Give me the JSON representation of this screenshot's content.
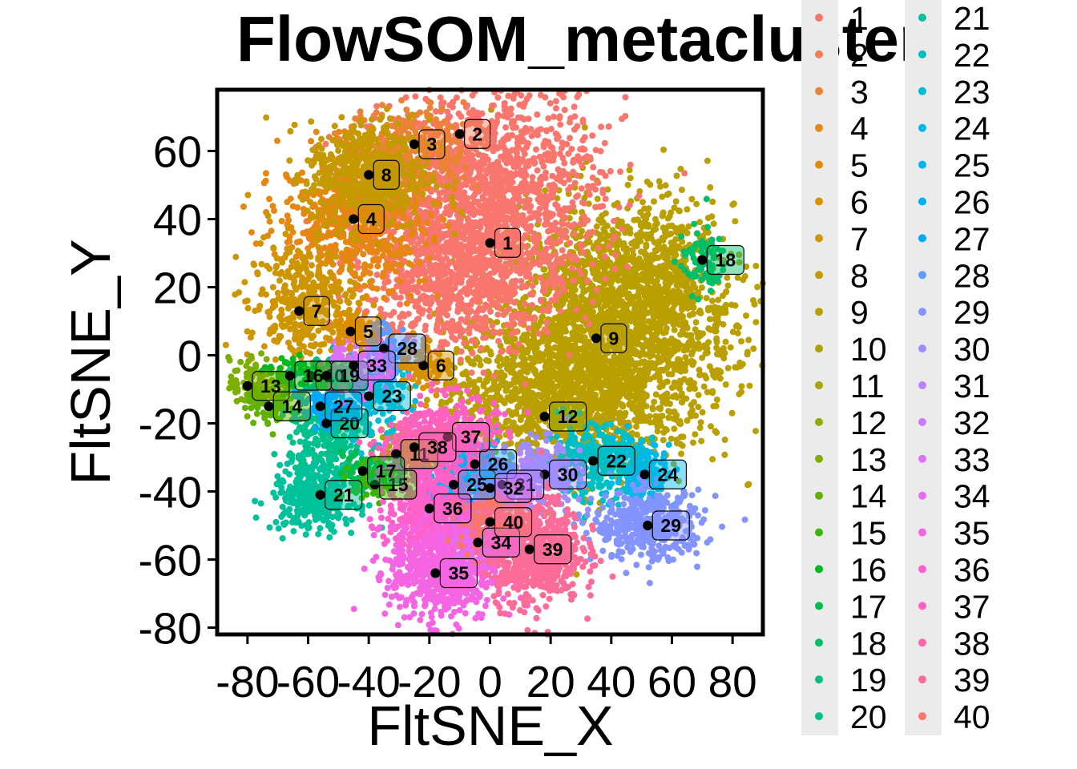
{
  "chart_data": {
    "type": "scatter",
    "title": "FlowSOM_metacluster",
    "xlabel": "FltSNE_X",
    "ylabel": "FltSNE_Y",
    "xlim": [
      -90,
      90
    ],
    "ylim": [
      -82,
      78
    ],
    "x_ticks": [
      -80,
      -60,
      -40,
      -20,
      0,
      20,
      40,
      60,
      80
    ],
    "y_ticks": [
      -80,
      -60,
      -40,
      -20,
      0,
      20,
      40,
      60
    ],
    "x_tick_labels": [
      "-80",
      "-60",
      "-40",
      "-20",
      "0",
      "20",
      "40",
      "60",
      "80"
    ],
    "y_tick_labels": [
      "-80",
      "-60",
      "-40",
      "-20",
      "0",
      "20",
      "40",
      "60"
    ],
    "grid": false,
    "legend_position": "right",
    "legend_columns": 2,
    "series_names": [
      "1",
      "2",
      "3",
      "4",
      "5",
      "6",
      "7",
      "8",
      "9",
      "10",
      "11",
      "12",
      "13",
      "14",
      "15",
      "16",
      "17",
      "18",
      "19",
      "20",
      "21",
      "22",
      "23",
      "24",
      "25",
      "26",
      "27",
      "28",
      "29",
      "30",
      "31",
      "32",
      "33",
      "34",
      "35",
      "36",
      "37",
      "38",
      "39",
      "40"
    ],
    "series_colors": [
      "#F8766D",
      "#F27D52",
      "#EB8335",
      "#E68613",
      "#DF8C00",
      "#D89000",
      "#CD9600",
      "#C49A00",
      "#B9A000",
      "#AEA200",
      "#A3A500",
      "#95A900",
      "#7CAE00",
      "#5FB300",
      "#39B600",
      "#00B81F",
      "#00BB4E",
      "#00BE67",
      "#00BF7D",
      "#00C08B",
      "#00C19C",
      "#00BFC4",
      "#00BCD8",
      "#00B8E7",
      "#00B4F0",
      "#00AEFA",
      "#00A9FF",
      "#619CFF",
      "#8494FF",
      "#9F8CFF",
      "#B983FF",
      "#C77CFF",
      "#DB72FB",
      "#E76BF3",
      "#F564E3",
      "#FF61CC",
      "#FF61C3",
      "#FF65AE",
      "#FC6C98",
      "#F8766D"
    ],
    "clusters": [
      {
        "label": "1",
        "x": 0,
        "y": 33
      },
      {
        "label": "2",
        "x": -10,
        "y": 65
      },
      {
        "label": "3",
        "x": -25,
        "y": 62
      },
      {
        "label": "4",
        "x": -45,
        "y": 40
      },
      {
        "label": "5",
        "x": -46,
        "y": 7
      },
      {
        "label": "6",
        "x": -22,
        "y": -3
      },
      {
        "label": "7",
        "x": -63,
        "y": 13
      },
      {
        "label": "8",
        "x": -40,
        "y": 53
      },
      {
        "label": "9",
        "x": 35,
        "y": 5
      },
      {
        "label": "10",
        "x": -59,
        "y": -6
      },
      {
        "label": "11",
        "x": -31,
        "y": -29
      },
      {
        "label": "12",
        "x": 18,
        "y": -18
      },
      {
        "label": "13",
        "x": -80,
        "y": -9
      },
      {
        "label": "14",
        "x": -73,
        "y": -15
      },
      {
        "label": "15",
        "x": -38,
        "y": -38
      },
      {
        "label": "16",
        "x": -66,
        "y": -6
      },
      {
        "label": "17",
        "x": -42,
        "y": -34
      },
      {
        "label": "18",
        "x": 70,
        "y": 28
      },
      {
        "label": "19",
        "x": -54,
        "y": -6
      },
      {
        "label": "20",
        "x": -54,
        "y": -20
      },
      {
        "label": "21",
        "x": -56,
        "y": -41
      },
      {
        "label": "22",
        "x": 34,
        "y": -31
      },
      {
        "label": "23",
        "x": -40,
        "y": -12
      },
      {
        "label": "24",
        "x": 51,
        "y": -35
      },
      {
        "label": "25",
        "x": -12,
        "y": -38
      },
      {
        "label": "26",
        "x": -5,
        "y": -32
      },
      {
        "label": "27",
        "x": -56,
        "y": -15
      },
      {
        "label": "28",
        "x": -35,
        "y": 2
      },
      {
        "label": "29",
        "x": 52,
        "y": -50
      },
      {
        "label": "30",
        "x": 18,
        "y": -35
      },
      {
        "label": "31",
        "x": 4,
        "y": -38
      },
      {
        "label": "32",
        "x": 0,
        "y": -39
      },
      {
        "label": "33",
        "x": -45,
        "y": -3
      },
      {
        "label": "34",
        "x": -4,
        "y": -55
      },
      {
        "label": "35",
        "x": -18,
        "y": -64
      },
      {
        "label": "36",
        "x": -20,
        "y": -45
      },
      {
        "label": "37",
        "x": -14,
        "y": -24
      },
      {
        "label": "38",
        "x": -25,
        "y": -27
      },
      {
        "label": "39",
        "x": 13,
        "y": -57
      },
      {
        "label": "40",
        "x": 0,
        "y": -49
      }
    ]
  }
}
